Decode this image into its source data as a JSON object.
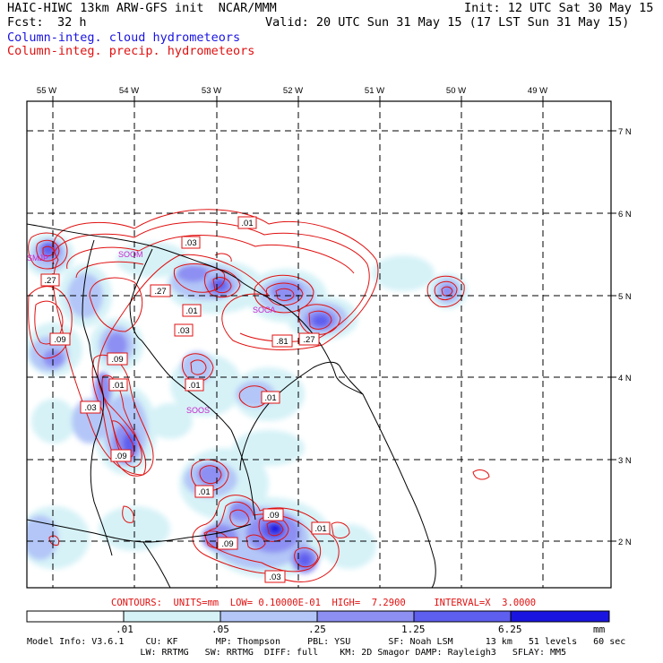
{
  "header": {
    "title": "HAIC-HIWC 13km ARW-GFS init  NCAR/MMM",
    "init": "Init: 12 UTC Sat 30 May 15",
    "fcst_label": "Fcst:",
    "fcst_value": "32 h",
    "valid": "Valid: 20 UTC Sun 31 May 15 (17 LST Sun 31 May 15)",
    "field_cloud": "Column-integ. cloud hydrometeors",
    "field_precip": "Column-integ. precip. hydrometeors"
  },
  "map": {
    "lon_labels": [
      "55 W",
      "54 W",
      "53 W",
      "52 W",
      "51 W",
      "50 W",
      "49 W"
    ],
    "lat_labels": [
      "7 N",
      "6 N",
      "5 N",
      "4 N",
      "3 N",
      "2 N"
    ],
    "station_labels": [
      "SMJP",
      "SOCA",
      "SOOS",
      "SOOM"
    ],
    "contour_labels": [
      ".01",
      ".03",
      ".27",
      ".01",
      ".03",
      ".27",
      ".09",
      ".01",
      ".09",
      ".81",
      ".27",
      ".01",
      ".01",
      ".03",
      ".09",
      ".01",
      ".09",
      ".01",
      ".09",
      ".03"
    ]
  },
  "contour_info": "CONTOURS:  UNITS=mm  LOW= 0.10000E-01  HIGH=  7.2900     INTERVAL=X  3.0000",
  "colorbar": {
    "ticks": [
      ".01",
      ".05",
      ".25",
      "1.25",
      "6.25"
    ],
    "units": "mm",
    "colors": [
      "#ffffff",
      "#d6f2f7",
      "#b3c6f7",
      "#8d8ff2",
      "#5e5eef",
      "#1a14e0"
    ]
  },
  "model_info": {
    "line1": "Model Info: V3.6.1    CU: KF       MP: Thompson     PBL: YSU       SF: Noah LSM      13 km   51 levels   60 sec",
    "line2": "                     LW: RRTMG   SW: RRTMG  DIFF: full    KM: 2D Smagor DAMP: Rayleigh3   SFLAY: MM5"
  }
}
